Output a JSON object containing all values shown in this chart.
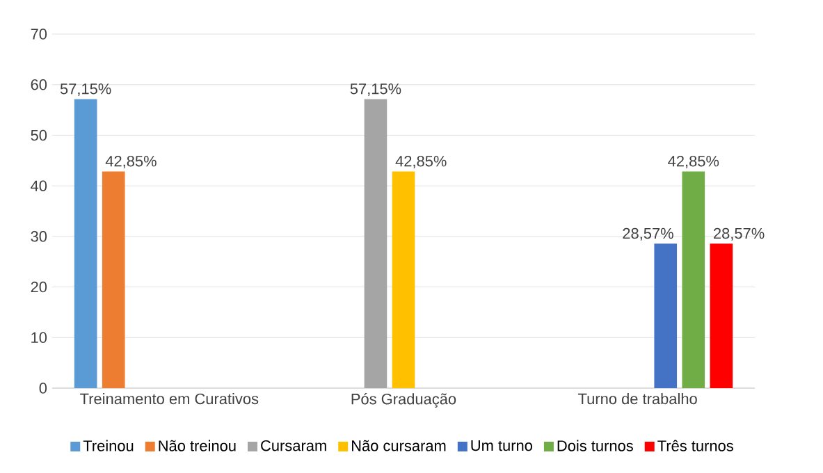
{
  "chart_data": {
    "type": "bar",
    "categories": [
      "Treinamento em Curativos",
      "Pós Graduação",
      "Turno de trabalho"
    ],
    "series": [
      {
        "name": "Treinou",
        "color": "#5b9bd5",
        "values": [
          57.15,
          null,
          null
        ],
        "value_labels": [
          "57,15%",
          null,
          null
        ]
      },
      {
        "name": "Não treinou",
        "color": "#ed7d31",
        "values": [
          42.85,
          null,
          null
        ],
        "value_labels": [
          "42,85%",
          null,
          null
        ]
      },
      {
        "name": "Cursaram",
        "color": "#a5a5a5",
        "values": [
          null,
          57.15,
          null
        ],
        "value_labels": [
          null,
          "57,15%",
          null
        ]
      },
      {
        "name": "Não cursaram",
        "color": "#ffc000",
        "values": [
          null,
          42.85,
          null
        ],
        "value_labels": [
          null,
          "42,85%",
          null
        ]
      },
      {
        "name": "Um turno",
        "color": "#4472c4",
        "values": [
          null,
          null,
          28.57
        ],
        "value_labels": [
          null,
          null,
          "28,57%"
        ]
      },
      {
        "name": "Dois turnos",
        "color": "#70ad47",
        "values": [
          null,
          null,
          42.85
        ],
        "value_labels": [
          null,
          null,
          "42,85%"
        ]
      },
      {
        "name": "Três turnos",
        "color": "#ff0000",
        "values": [
          null,
          null,
          28.57
        ],
        "value_labels": [
          null,
          null,
          "28,57%"
        ]
      }
    ],
    "ylim": [
      0,
      70
    ],
    "yticks": [
      0,
      10,
      20,
      30,
      40,
      50,
      60,
      70
    ],
    "grid": "y",
    "legend": "bottom"
  }
}
